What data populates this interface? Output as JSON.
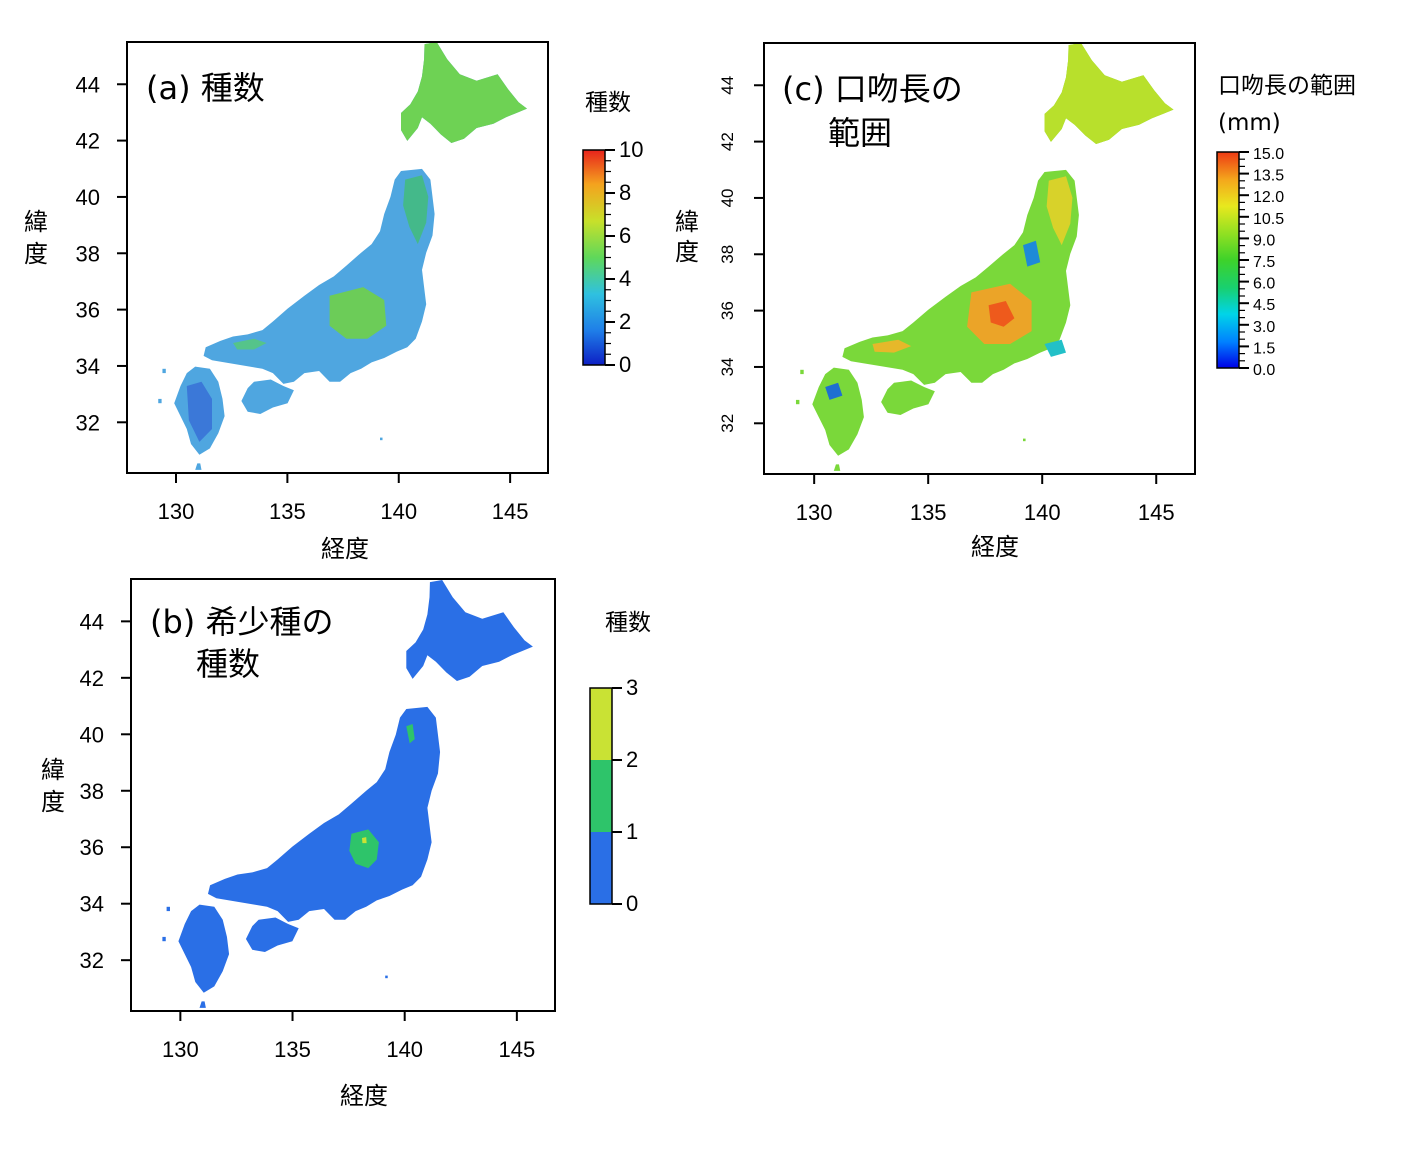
{
  "chart_data": [
    {
      "type": "heatmap",
      "id": "a",
      "title": "(a) 種数",
      "xlabel": "経度",
      "ylabel": "緯度",
      "x_ticks": [
        130,
        135,
        140,
        145
      ],
      "y_ticks": [
        32,
        34,
        36,
        38,
        40,
        42,
        44
      ],
      "xlim": [
        127.8,
        146.7
      ],
      "ylim": [
        30.2,
        45.5
      ],
      "legend": {
        "title": "種数",
        "ticks": [
          "0",
          "2",
          "4",
          "6",
          "8",
          "10"
        ],
        "range": [
          0,
          10
        ],
        "colors": [
          "#0d1fc4",
          "#1f7ee8",
          "#2fc1e0",
          "#5fd85a",
          "#c8e02a",
          "#f4a31e",
          "#e8231c"
        ]
      },
      "map_color": "#4fa6e0"
    },
    {
      "type": "heatmap",
      "id": "b",
      "title_line1": "(b) 希少種の",
      "title_line2": "種数",
      "xlabel": "経度",
      "ylabel": "緯度",
      "x_ticks": [
        130,
        135,
        140,
        145
      ],
      "y_ticks": [
        32,
        34,
        36,
        38,
        40,
        42,
        44
      ],
      "xlim": [
        127.8,
        146.7
      ],
      "ylim": [
        30.2,
        45.5
      ],
      "legend": {
        "title": "種数",
        "ticks": [
          "0",
          "1",
          "2",
          "3"
        ],
        "range": [
          0,
          3
        ],
        "colors": [
          "#2a6fe6",
          "#2ec46a",
          "#c9e234"
        ]
      },
      "map_color": "#2a6fe6"
    },
    {
      "type": "heatmap",
      "id": "c",
      "title_line1": "(c) 口吻長の",
      "title_line2": "範囲",
      "xlabel": "経度",
      "ylabel": "緯度",
      "x_ticks": [
        130,
        135,
        140,
        145
      ],
      "y_ticks": [
        32,
        34,
        36,
        38,
        40,
        42,
        44
      ],
      "xlim": [
        127.8,
        146.7
      ],
      "ylim": [
        30.2,
        45.5
      ],
      "legend": {
        "title_line1": "口吻長の範囲",
        "title_line2": "(mm)",
        "ticks": [
          "0.0",
          "1.5",
          "3.0",
          "4.5",
          "6.0",
          "7.5",
          "9.0",
          "10.5",
          "12.0",
          "13.5",
          "15.0"
        ],
        "range": [
          0,
          15
        ],
        "colors": [
          "#0000e6",
          "#0080ff",
          "#00d4e8",
          "#18d070",
          "#3ed22a",
          "#8fe022",
          "#e8e81e",
          "#f4a81c",
          "#ee3a14"
        ]
      },
      "map_color": "#7ad83a"
    }
  ]
}
